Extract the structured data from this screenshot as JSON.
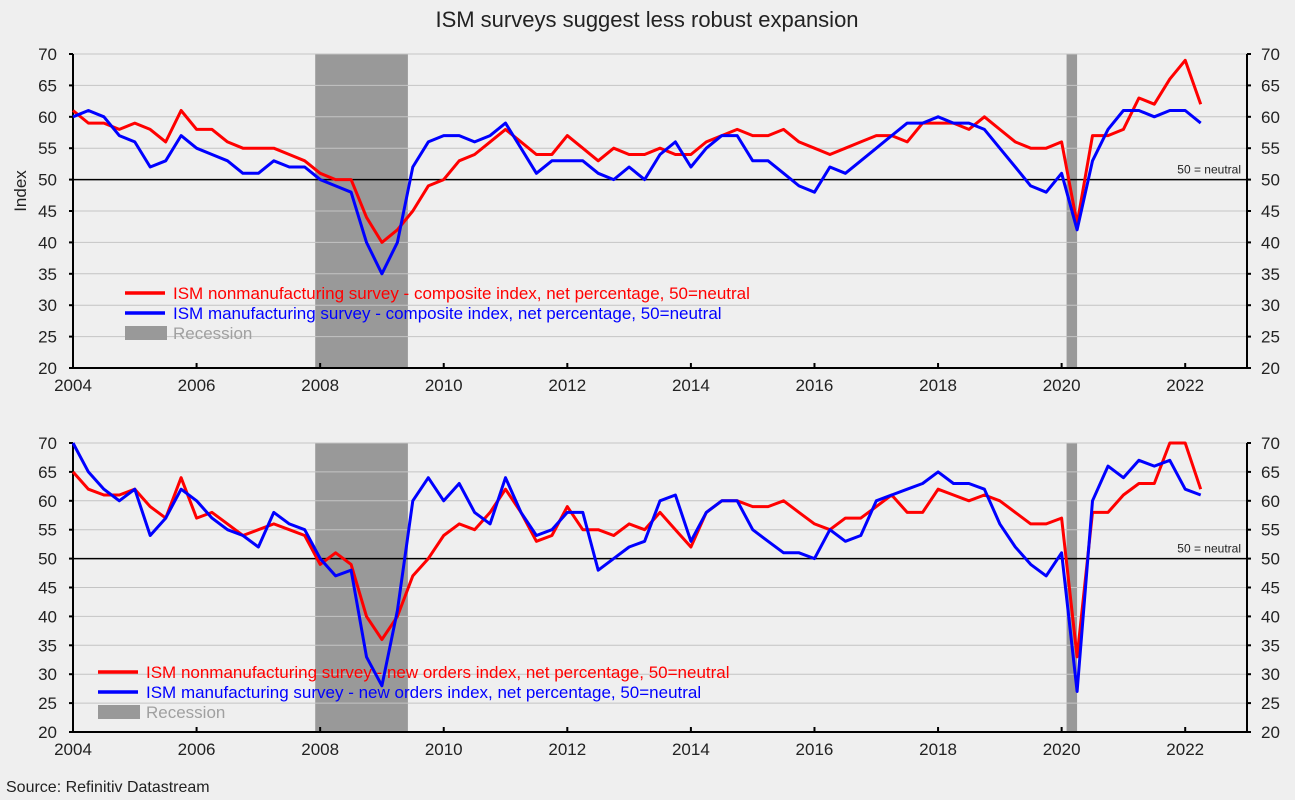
{
  "title": "ISM surveys suggest less robust expansion",
  "source": "Source: Refinitiv Datastream",
  "colors": {
    "red": "#ff0000",
    "blue": "#0000ff",
    "recession": "#999999",
    "background": "#efefef"
  },
  "chart_data": [
    {
      "type": "line",
      "ylabel": "Index",
      "ylim": [
        20,
        70
      ],
      "yticks": [
        "20",
        "25",
        "30",
        "35",
        "40",
        "45",
        "50",
        "55",
        "60",
        "65",
        "70"
      ],
      "xlim": [
        2004,
        2023
      ],
      "xticks": [
        "2004",
        "2006",
        "2008",
        "2010",
        "2012",
        "2014",
        "2016",
        "2018",
        "2020",
        "2022"
      ],
      "grid": true,
      "reference_line": {
        "value": 50,
        "label": "50 = neutral"
      },
      "recessions": [
        [
          2007.92,
          2009.42
        ],
        [
          2020.08,
          2020.25
        ]
      ],
      "legend_position": "bottom-left",
      "legend": [
        "ISM nonmanufacturing survey - composite index, net percentage, 50=neutral",
        "ISM manufacturing survey - composite index, net percentage, 50=neutral",
        "Recession"
      ],
      "x_start": 2004,
      "x_step": 0.25,
      "series": [
        {
          "name": "ISM nonmanufacturing survey - composite index, net percentage, 50=neutral",
          "color": "#ff0000",
          "values": [
            61,
            59,
            59,
            58,
            59,
            58,
            56,
            61,
            58,
            58,
            56,
            55,
            55,
            55,
            54,
            53,
            51,
            50,
            50,
            44,
            40,
            42,
            45,
            49,
            50,
            53,
            54,
            56,
            58,
            56,
            54,
            54,
            57,
            55,
            53,
            55,
            54,
            54,
            55,
            54,
            54,
            56,
            57,
            58,
            57,
            57,
            58,
            56,
            55,
            54,
            55,
            56,
            57,
            57,
            56,
            59,
            59,
            59,
            58,
            60,
            58,
            56,
            55,
            55,
            56,
            43,
            57,
            57,
            58,
            63,
            62,
            66,
            69,
            62
          ]
        },
        {
          "name": "ISM manufacturing survey - composite index, net percentage, 50=neutral",
          "color": "#0000ff",
          "values": [
            60,
            61,
            60,
            57,
            56,
            52,
            53,
            57,
            55,
            54,
            53,
            51,
            51,
            53,
            52,
            52,
            50,
            49,
            48,
            40,
            35,
            40,
            52,
            56,
            57,
            57,
            56,
            57,
            59,
            55,
            51,
            53,
            53,
            53,
            51,
            50,
            52,
            50,
            54,
            56,
            52,
            55,
            57,
            57,
            53,
            53,
            51,
            49,
            48,
            52,
            51,
            53,
            55,
            57,
            59,
            59,
            60,
            59,
            59,
            58,
            55,
            52,
            49,
            48,
            51,
            42,
            53,
            58,
            61,
            61,
            60,
            61,
            61,
            59
          ]
        }
      ]
    },
    {
      "type": "line",
      "ylim": [
        20,
        70
      ],
      "yticks": [
        "20",
        "25",
        "30",
        "35",
        "40",
        "45",
        "50",
        "55",
        "60",
        "65",
        "70"
      ],
      "xlim": [
        2004,
        2023
      ],
      "xticks": [
        "2004",
        "2006",
        "2008",
        "2010",
        "2012",
        "2014",
        "2016",
        "2018",
        "2020",
        "2022"
      ],
      "grid": true,
      "reference_line": {
        "value": 50,
        "label": "50 = neutral"
      },
      "recessions": [
        [
          2007.92,
          2009.42
        ],
        [
          2020.08,
          2020.25
        ]
      ],
      "legend_position": "bottom-left",
      "legend": [
        "ISM nonmanufacturing survey - new orders index, net percentage, 50=neutral",
        "ISM manufacturing survey - new orders index, net percentage, 50=neutral",
        "Recession"
      ],
      "x_start": 2004,
      "x_step": 0.25,
      "series": [
        {
          "name": "ISM nonmanufacturing survey - new orders index, net percentage, 50=neutral",
          "color": "#ff0000",
          "values": [
            65,
            62,
            61,
            61,
            62,
            59,
            57,
            64,
            57,
            58,
            56,
            54,
            55,
            56,
            55,
            54,
            49,
            51,
            49,
            40,
            36,
            40,
            47,
            50,
            54,
            56,
            55,
            58,
            62,
            58,
            53,
            54,
            59,
            55,
            55,
            54,
            56,
            55,
            58,
            55,
            52,
            58,
            60,
            60,
            59,
            59,
            60,
            58,
            56,
            55,
            57,
            57,
            59,
            61,
            58,
            58,
            62,
            61,
            60,
            61,
            60,
            58,
            56,
            56,
            57,
            33,
            58,
            58,
            61,
            63,
            63,
            70,
            70,
            62
          ]
        },
        {
          "name": "ISM manufacturing survey - new orders index, net percentage, 50=neutral",
          "color": "#0000ff",
          "values": [
            70,
            65,
            62,
            60,
            62,
            54,
            57,
            62,
            60,
            57,
            55,
            54,
            52,
            58,
            56,
            55,
            50,
            47,
            48,
            33,
            28,
            41,
            60,
            64,
            60,
            63,
            58,
            56,
            64,
            58,
            54,
            55,
            58,
            58,
            48,
            50,
            52,
            53,
            60,
            61,
            53,
            58,
            60,
            60,
            55,
            53,
            51,
            51,
            50,
            55,
            53,
            54,
            60,
            61,
            62,
            63,
            65,
            63,
            63,
            62,
            56,
            52,
            49,
            47,
            51,
            27,
            60,
            66,
            64,
            67,
            66,
            67,
            62,
            61
          ]
        }
      ]
    }
  ]
}
